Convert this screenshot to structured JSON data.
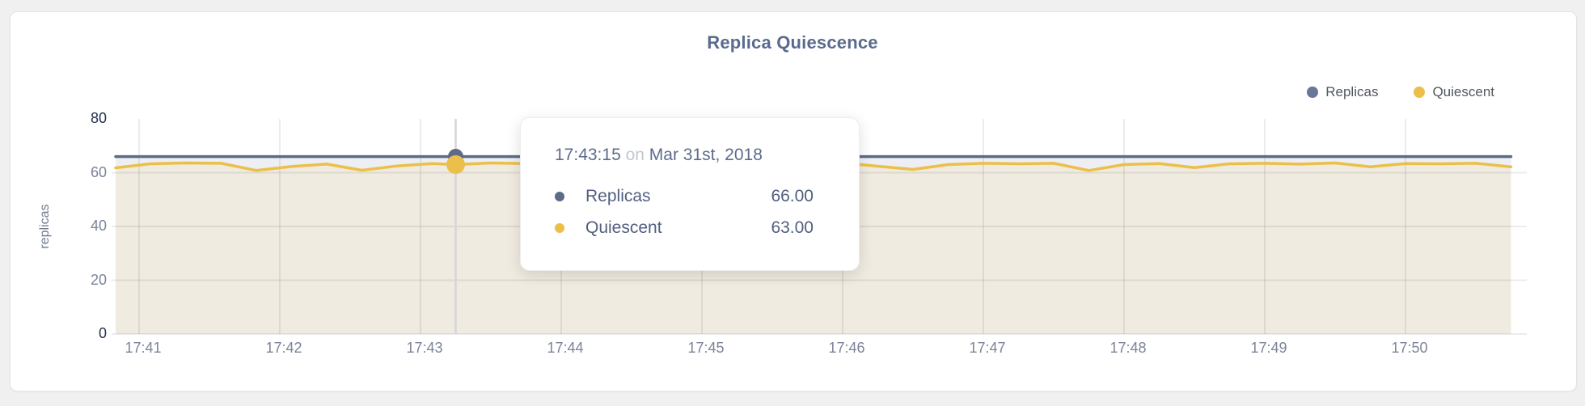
{
  "page": {
    "background": "#f0f0f1"
  },
  "card": {
    "background": "#ffffff",
    "border_color": "#e3e3e6"
  },
  "chart_data": {
    "type": "area",
    "title": "Replica Quiescence",
    "xlabel": "",
    "ylabel": "replicas",
    "ylim": [
      0,
      80
    ],
    "y_ticks": [
      0,
      20,
      40,
      60,
      80
    ],
    "y_ticks_emphasized": [
      0,
      80
    ],
    "x_ticks": [
      "17:41",
      "17:42",
      "17:43",
      "17:44",
      "17:45",
      "17:46",
      "17:47",
      "17:48",
      "17:49",
      "17:50"
    ],
    "grid": true,
    "legend_position": "top-right",
    "times": [
      "17:40:50",
      "17:41:05",
      "17:41:20",
      "17:41:35",
      "17:41:50",
      "17:42:05",
      "17:42:20",
      "17:42:35",
      "17:42:50",
      "17:43:05",
      "17:43:15",
      "17:43:30",
      "17:43:45",
      "17:44:00",
      "17:44:15",
      "17:44:30",
      "17:44:45",
      "17:45:00",
      "17:45:15",
      "17:45:30",
      "17:45:45",
      "17:46:00",
      "17:46:15",
      "17:46:30",
      "17:46:45",
      "17:47:00",
      "17:47:15",
      "17:47:30",
      "17:47:45",
      "17:48:00",
      "17:48:15",
      "17:48:30",
      "17:48:45",
      "17:49:00",
      "17:49:15",
      "17:49:30",
      "17:49:45",
      "17:50:00",
      "17:50:15",
      "17:50:30",
      "17:50:45"
    ],
    "series": [
      {
        "name": "Replicas",
        "legend_color": "#68779a",
        "line_color": "#5e6b87",
        "fill_color": "#edeff3",
        "values": [
          66,
          66,
          66,
          66,
          66,
          66,
          66,
          66,
          66,
          66,
          66,
          66,
          66,
          66,
          66,
          66,
          66,
          66,
          66,
          66,
          66,
          66,
          66,
          66,
          66,
          66,
          66,
          66,
          66,
          66,
          66,
          66,
          66,
          66,
          66,
          66,
          66,
          66,
          66,
          66,
          66
        ]
      },
      {
        "name": "Quiescent",
        "legend_color": "#ecbf4a",
        "line_color": "#ecbf4a",
        "fill_color": "#f0ebe0",
        "values": [
          61.8,
          63.3,
          63.6,
          63.5,
          60.8,
          62.3,
          63.2,
          60.9,
          62.5,
          63.4,
          63.0,
          63.6,
          63.4,
          63.5,
          63.2,
          63.6,
          63.4,
          63.5,
          63.1,
          63.5,
          63.3,
          63.6,
          62.4,
          61.2,
          63.0,
          63.5,
          63.3,
          63.5,
          60.8,
          63.0,
          63.4,
          61.9,
          63.3,
          63.5,
          63.2,
          63.6,
          62.2,
          63.4,
          63.3,
          63.5,
          62.2
        ]
      }
    ],
    "hover": {
      "time": "17:43:15",
      "index": 10
    }
  },
  "tooltip": {
    "time": "17:43:15",
    "on_word": "on",
    "date": "Mar 31st, 2018",
    "rows": [
      {
        "label": "Replicas",
        "value": "66.00",
        "color": "#5e6b87"
      },
      {
        "label": "Quiescent",
        "value": "63.00",
        "color": "#ecbf4a"
      }
    ]
  }
}
